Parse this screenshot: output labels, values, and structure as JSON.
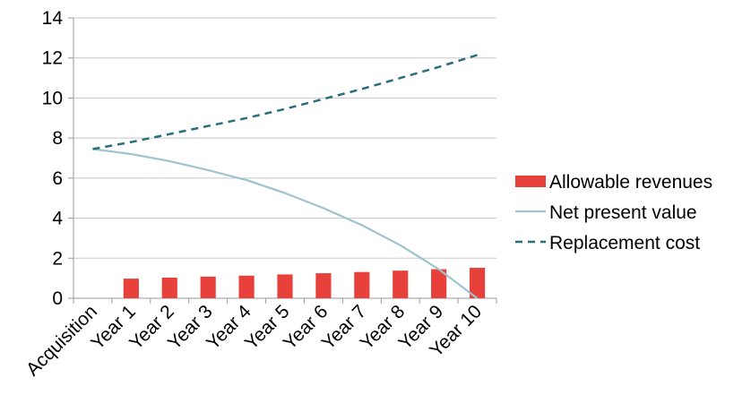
{
  "chart_data": {
    "type": "bar",
    "categories": [
      "Acquisition",
      "Year 1",
      "Year 2",
      "Year 3",
      "Year 4",
      "Year 5",
      "Year 6",
      "Year 7",
      "Year 8",
      "Year 9",
      "Year 10"
    ],
    "series": [
      {
        "name": "Allowable revenues",
        "type": "bar",
        "color": "#e8413c",
        "values": [
          null,
          0.98,
          1.03,
          1.08,
          1.13,
          1.19,
          1.25,
          1.31,
          1.38,
          1.45,
          1.52
        ]
      },
      {
        "name": "Net present value",
        "type": "line",
        "style": "solid",
        "color": "#9fc3cf",
        "values": [
          7.45,
          7.2,
          6.85,
          6.4,
          5.9,
          5.25,
          4.5,
          3.65,
          2.65,
          1.45,
          0.0
        ]
      },
      {
        "name": "Replacement cost",
        "type": "line",
        "style": "dashed",
        "color": "#2a6d7c",
        "values": [
          7.45,
          7.8,
          8.2,
          8.6,
          9.0,
          9.45,
          9.95,
          10.45,
          11.0,
          11.55,
          12.15
        ]
      }
    ],
    "ylim": [
      0,
      14
    ],
    "yticks": [
      0,
      2,
      4,
      6,
      8,
      10,
      12,
      14
    ],
    "grid": true,
    "legend": "right"
  },
  "colors": {
    "grid": "#c8c8c8",
    "axis": "#9a9a9a"
  }
}
